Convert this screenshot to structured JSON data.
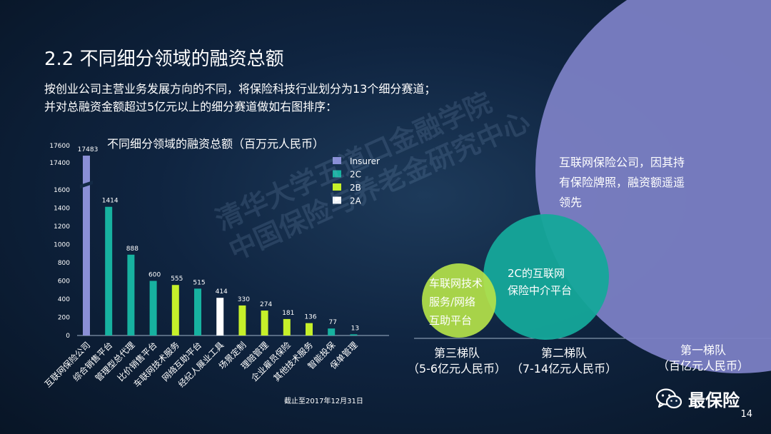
{
  "slide": {
    "title": "2.2  不同细分领域的融资总额",
    "intro": "按创业公司主营业务发展方向的不同，将保险科技行业划分为13个细分赛道；并对总融资金额超过5亿元以上的细分赛道做如右图排序：",
    "footnote": "截止至2017年12月31日",
    "watermark_line1": "清华大学五道口金融学院",
    "watermark_line2": "中国保险与养老金研究中心",
    "brand": "最保险",
    "page_number": "14"
  },
  "chart_data": [
    {
      "type": "bar",
      "title": "不同细分领域的融资总额（百万元人民币）",
      "categories": [
        "互联网保险公司",
        "综合销售平台",
        "管理型总代理",
        "比价销售平台",
        "车联网技术服务",
        "网络互助平台",
        "经纪人展业工具",
        "场景定制",
        "理赔管理",
        "企业雇员保险",
        "其他技术服务",
        "智能投保",
        "保单管理"
      ],
      "values": [
        17483,
        1414,
        888,
        600,
        555,
        515,
        414,
        330,
        274,
        181,
        136,
        77,
        13
      ],
      "groups": [
        "Insurer",
        "2C",
        "2C",
        "2C",
        "2B",
        "2C",
        "2A",
        "2B",
        "2B",
        "2B",
        "2B",
        "2C",
        "2C"
      ],
      "value_labels": [
        "17483",
        "1414",
        "888",
        "600",
        "555",
        "515",
        "414",
        "330",
        "274",
        "181",
        "136",
        "77",
        "13"
      ],
      "y_ticks": [
        "0",
        "200",
        "400",
        "600",
        "800",
        "1000",
        "1200",
        "1400",
        "1600",
        "17400",
        "17600"
      ],
      "axis_break": {
        "lower_max": 1700,
        "upper_range": [
          17300,
          17600
        ]
      },
      "legend": {
        "placement": "top-right",
        "items": [
          {
            "name": "Insurer",
            "color": "#8a8fd6"
          },
          {
            "name": "2C",
            "color": "#17b2a0"
          },
          {
            "name": "2B",
            "color": "#c6f02a"
          },
          {
            "name": "2A",
            "color": "#ffffff"
          }
        ]
      },
      "grid": false
    },
    {
      "type": "bubble",
      "bubbles": [
        {
          "tier": "第一梯队",
          "tier_note": "（百亿元人民币）",
          "text": "互联网保险公司，因其持有保险牌照，融资额遥遥领先",
          "color": "#7b7fc4"
        },
        {
          "tier": "第二梯队",
          "tier_note": "（7-14亿元人民币）",
          "text": "2C的互联网保险中介平台",
          "color": "#15a89a"
        },
        {
          "tier": "第三梯队",
          "tier_note": "（5-6亿元人民币）",
          "text": "车联网技术服务/网络互助平台",
          "color": "#b4e24a"
        }
      ]
    }
  ]
}
